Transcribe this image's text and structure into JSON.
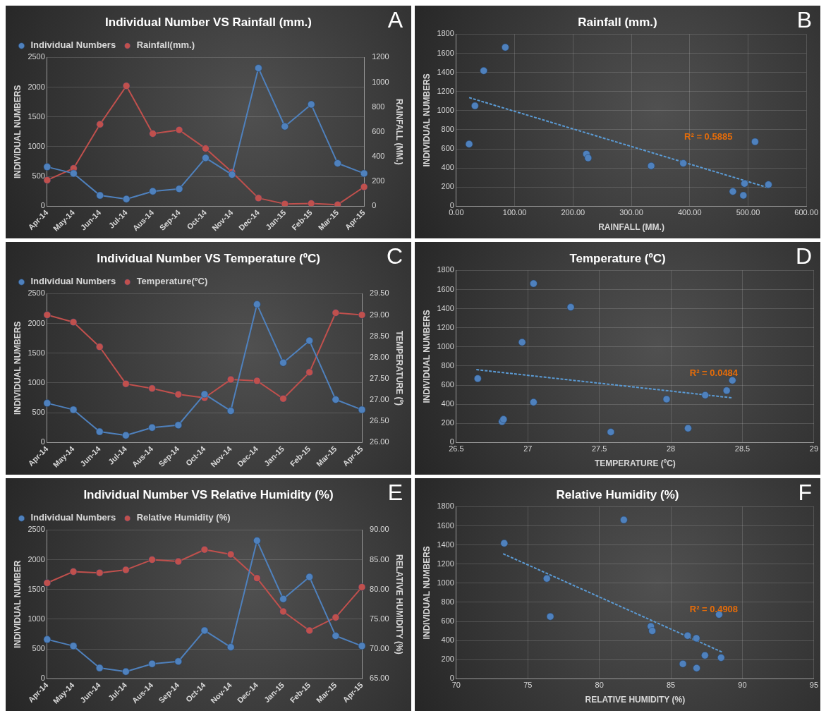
{
  "chart_data": [
    {
      "type": "line",
      "title": "Individual Number VS Rainfall (mm.)",
      "ylabel": "INDIVIDUAL NUMBERS",
      "y2label": "RAINFALL (MM.)",
      "categories": [
        "Apr-14",
        "May-14",
        "Jun-14",
        "Jul-14",
        "Aus-14",
        "Sep-14",
        "Oct-14",
        "Nov-14",
        "Dec-14",
        "Jan-15",
        "Feb-15",
        "Mar-15",
        "Apr-15"
      ],
      "series": [
        {
          "name": "Individual Numbers",
          "color": "#4f81bd",
          "values": [
            660,
            550,
            180,
            120,
            250,
            290,
            810,
            530,
            2320,
            1340,
            1710,
            720,
            550
          ]
        },
        {
          "name": "Rainfall(mm.)",
          "color": "#c0504d",
          "axis": "y2",
          "values": [
            210,
            305,
            660,
            970,
            585,
            615,
            465,
            275,
            65,
            18,
            22,
            12,
            155
          ]
        }
      ],
      "ylim": [
        0,
        2500
      ],
      "yticks": [
        0,
        500,
        1000,
        1500,
        2000,
        2500
      ],
      "y2lim": [
        0,
        1200
      ],
      "y2ticks": [
        0,
        200,
        400,
        600,
        800,
        1000,
        1200
      ],
      "grid": "y",
      "legend": "top left",
      "marker": "circle",
      "annotations": [
        "A"
      ]
    },
    {
      "type": "scatter",
      "title": "Rainfall (mm.)",
      "xlabel": "RAINFALL (MM.)",
      "ylabel": "INDIVIDUAL NUMBERS",
      "series": [
        {
          "color": "#4f81bd",
          "x": [
            22,
            32,
            47,
            84,
            223,
            226,
            334,
            389,
            474,
            492,
            494,
            512,
            535
          ],
          "values": [
            650,
            1050,
            1417,
            1662,
            546,
            504,
            422,
            449,
            154,
            113,
            237,
            675,
            226
          ]
        },
        {
          "type": "line",
          "color": "#5b9bd5",
          "line_style": "dashed",
          "marker": "none",
          "x": [
            22,
            535
          ],
          "values": [
            1136,
            193
          ]
        }
      ],
      "xlim": [
        0,
        600
      ],
      "xticks": [
        {
          "value": 0,
          "label": "0.00"
        },
        {
          "value": 100,
          "label": "100.00"
        },
        {
          "value": 200,
          "label": "200.00"
        },
        {
          "value": 300,
          "label": "300.00"
        },
        {
          "value": 400,
          "label": "400.00"
        },
        {
          "value": 500,
          "label": "500.00"
        },
        {
          "value": 600,
          "label": "600.00"
        }
      ],
      "ylim": [
        0,
        1800
      ],
      "yticks": [
        0,
        200,
        400,
        600,
        800,
        1000,
        1200,
        1400,
        1600,
        1800
      ],
      "grid": true,
      "marker": "circle",
      "annotations": [
        "B",
        "R² = 0.5885"
      ]
    },
    {
      "type": "line",
      "title": "Individual Number VS Temperature (ºC)",
      "ylabel": "INDIVIDUAL NUMBERS",
      "y2label": "TEMPERATURE (º)",
      "categories": [
        "Apr-14",
        "May-14",
        "Jun-14",
        "Jul-14",
        "Aus-14",
        "Sep-14",
        "Oct-14",
        "Nov-14",
        "Dec-14",
        "Jan-15",
        "Feb-15",
        "Mar-15",
        "Apr-15"
      ],
      "series": [
        {
          "name": "Individual Numbers",
          "color": "#4f81bd",
          "values": [
            660,
            550,
            180,
            120,
            250,
            290,
            810,
            530,
            2320,
            1340,
            1710,
            720,
            550
          ]
        },
        {
          "name": "Temperature(ºC)",
          "color": "#c0504d",
          "axis": "y2",
          "values": [
            29.0,
            28.83,
            28.25,
            27.38,
            27.27,
            27.13,
            27.05,
            27.48,
            27.45,
            27.03,
            27.65,
            29.05,
            29.0
          ]
        }
      ],
      "ylim": [
        0,
        2500
      ],
      "yticks": [
        0,
        500,
        1000,
        1500,
        2000,
        2500
      ],
      "y2lim": [
        26,
        29.5
      ],
      "y2ticks": [
        {
          "value": 26,
          "label": "26.00"
        },
        {
          "value": 26.5,
          "label": "26.50"
        },
        {
          "value": 27,
          "label": "27.00"
        },
        {
          "value": 27.5,
          "label": "27.50"
        },
        {
          "value": 28,
          "label": "28.00"
        },
        {
          "value": 28.5,
          "label": "28.50"
        },
        {
          "value": 29,
          "label": "29.00"
        },
        {
          "value": 29.5,
          "label": "29.50"
        }
      ],
      "grid": "y",
      "legend": "top left",
      "marker": "circle",
      "annotations": [
        "C"
      ]
    },
    {
      "type": "scatter",
      "title": "Temperature (ºC)",
      "xlabel": "TEMPERATURE (ºC)",
      "ylabel": "INDIVIDUAL NUMBERS",
      "series": [
        {
          "color": "#4f81bd",
          "x": [
            26.65,
            26.82,
            26.83,
            26.96,
            27.04,
            27.04,
            27.3,
            27.58,
            27.97,
            28.12,
            28.24,
            28.39,
            28.43
          ],
          "values": [
            669,
            219,
            242,
            1049,
            1662,
            422,
            1415,
            110,
            453,
            149,
            495,
            543,
            650
          ]
        },
        {
          "type": "line",
          "color": "#5b9bd5",
          "line_style": "dashed",
          "marker": "none",
          "x": [
            26.64,
            28.43
          ],
          "values": [
            762,
            467
          ]
        }
      ],
      "xlim": [
        26.5,
        29
      ],
      "xticks": [
        26.5,
        27,
        27.5,
        28,
        28.5,
        29
      ],
      "ylim": [
        0,
        1800
      ],
      "yticks": [
        0,
        200,
        400,
        600,
        800,
        1000,
        1200,
        1400,
        1600,
        1800
      ],
      "grid": true,
      "marker": "circle",
      "annotations": [
        "D",
        "R² = 0.0484"
      ]
    },
    {
      "type": "line",
      "title": "Individual Number VS Relative Humidity (%)",
      "ylabel": "INDIVIDUAL NUMBER",
      "y2label": "RELATIVE HUMIDITY (%)",
      "categories": [
        "Apr-14",
        "May-14",
        "Jun-14",
        "Jul-14",
        "Aus-14",
        "Sep-14",
        "Oct-14",
        "Nov-14",
        "Dec-14",
        "Jan-15",
        "Feb-15",
        "Mar-15",
        "Apr-15"
      ],
      "series": [
        {
          "name": "Individual Numbers",
          "color": "#4f81bd",
          "values": [
            660,
            550,
            180,
            120,
            250,
            290,
            810,
            530,
            2320,
            1340,
            1710,
            720,
            550
          ]
        },
        {
          "name": "Relative Humidity (%)",
          "color": "#c0504d",
          "axis": "y2",
          "values": [
            81.1,
            83.0,
            82.8,
            83.3,
            85.0,
            84.7,
            86.7,
            85.9,
            81.9,
            76.3,
            73.1,
            75.3,
            80.4
          ]
        }
      ],
      "ylim": [
        0,
        2500
      ],
      "yticks": [
        0,
        500,
        1000,
        1500,
        2000,
        2500
      ],
      "y2lim": [
        65,
        90
      ],
      "y2ticks": [
        {
          "value": 65,
          "label": "65.00"
        },
        {
          "value": 70,
          "label": "70.00"
        },
        {
          "value": 75,
          "label": "75.00"
        },
        {
          "value": 80,
          "label": "80.00"
        },
        {
          "value": 85,
          "label": "85.00"
        },
        {
          "value": 90,
          "label": "90.00"
        }
      ],
      "grid": "y",
      "legend": "top left",
      "marker": "circle",
      "annotations": [
        "E"
      ]
    },
    {
      "type": "scatter",
      "title": "Relative Humidity (%)",
      "xlabel": "RELATIVE HUMIDITY (%)",
      "ylabel": "INDIVIDUAL NUMBERS",
      "series": [
        {
          "color": "#4f81bd",
          "x": [
            73.35,
            76.33,
            76.57,
            81.71,
            83.6,
            83.7,
            85.84,
            86.17,
            86.78,
            86.8,
            87.38,
            88.37,
            88.51
          ],
          "values": [
            1417,
            1049,
            651,
            1662,
            548,
            501,
            156,
            451,
            424,
            112,
            245,
            672,
            221
          ]
        },
        {
          "type": "line",
          "color": "#5b9bd5",
          "line_style": "dashed",
          "marker": "none",
          "x": [
            73.27,
            88.57
          ],
          "values": [
            1308,
            280
          ]
        }
      ],
      "xlim": [
        70,
        95
      ],
      "xticks": [
        70,
        75,
        80,
        85,
        90,
        95
      ],
      "ylim": [
        0,
        1800
      ],
      "yticks": [
        0,
        200,
        400,
        600,
        800,
        1000,
        1200,
        1400,
        1600,
        1800
      ],
      "grid": true,
      "marker": "circle",
      "annotations": [
        "F",
        "R² = 0.4908"
      ]
    }
  ]
}
